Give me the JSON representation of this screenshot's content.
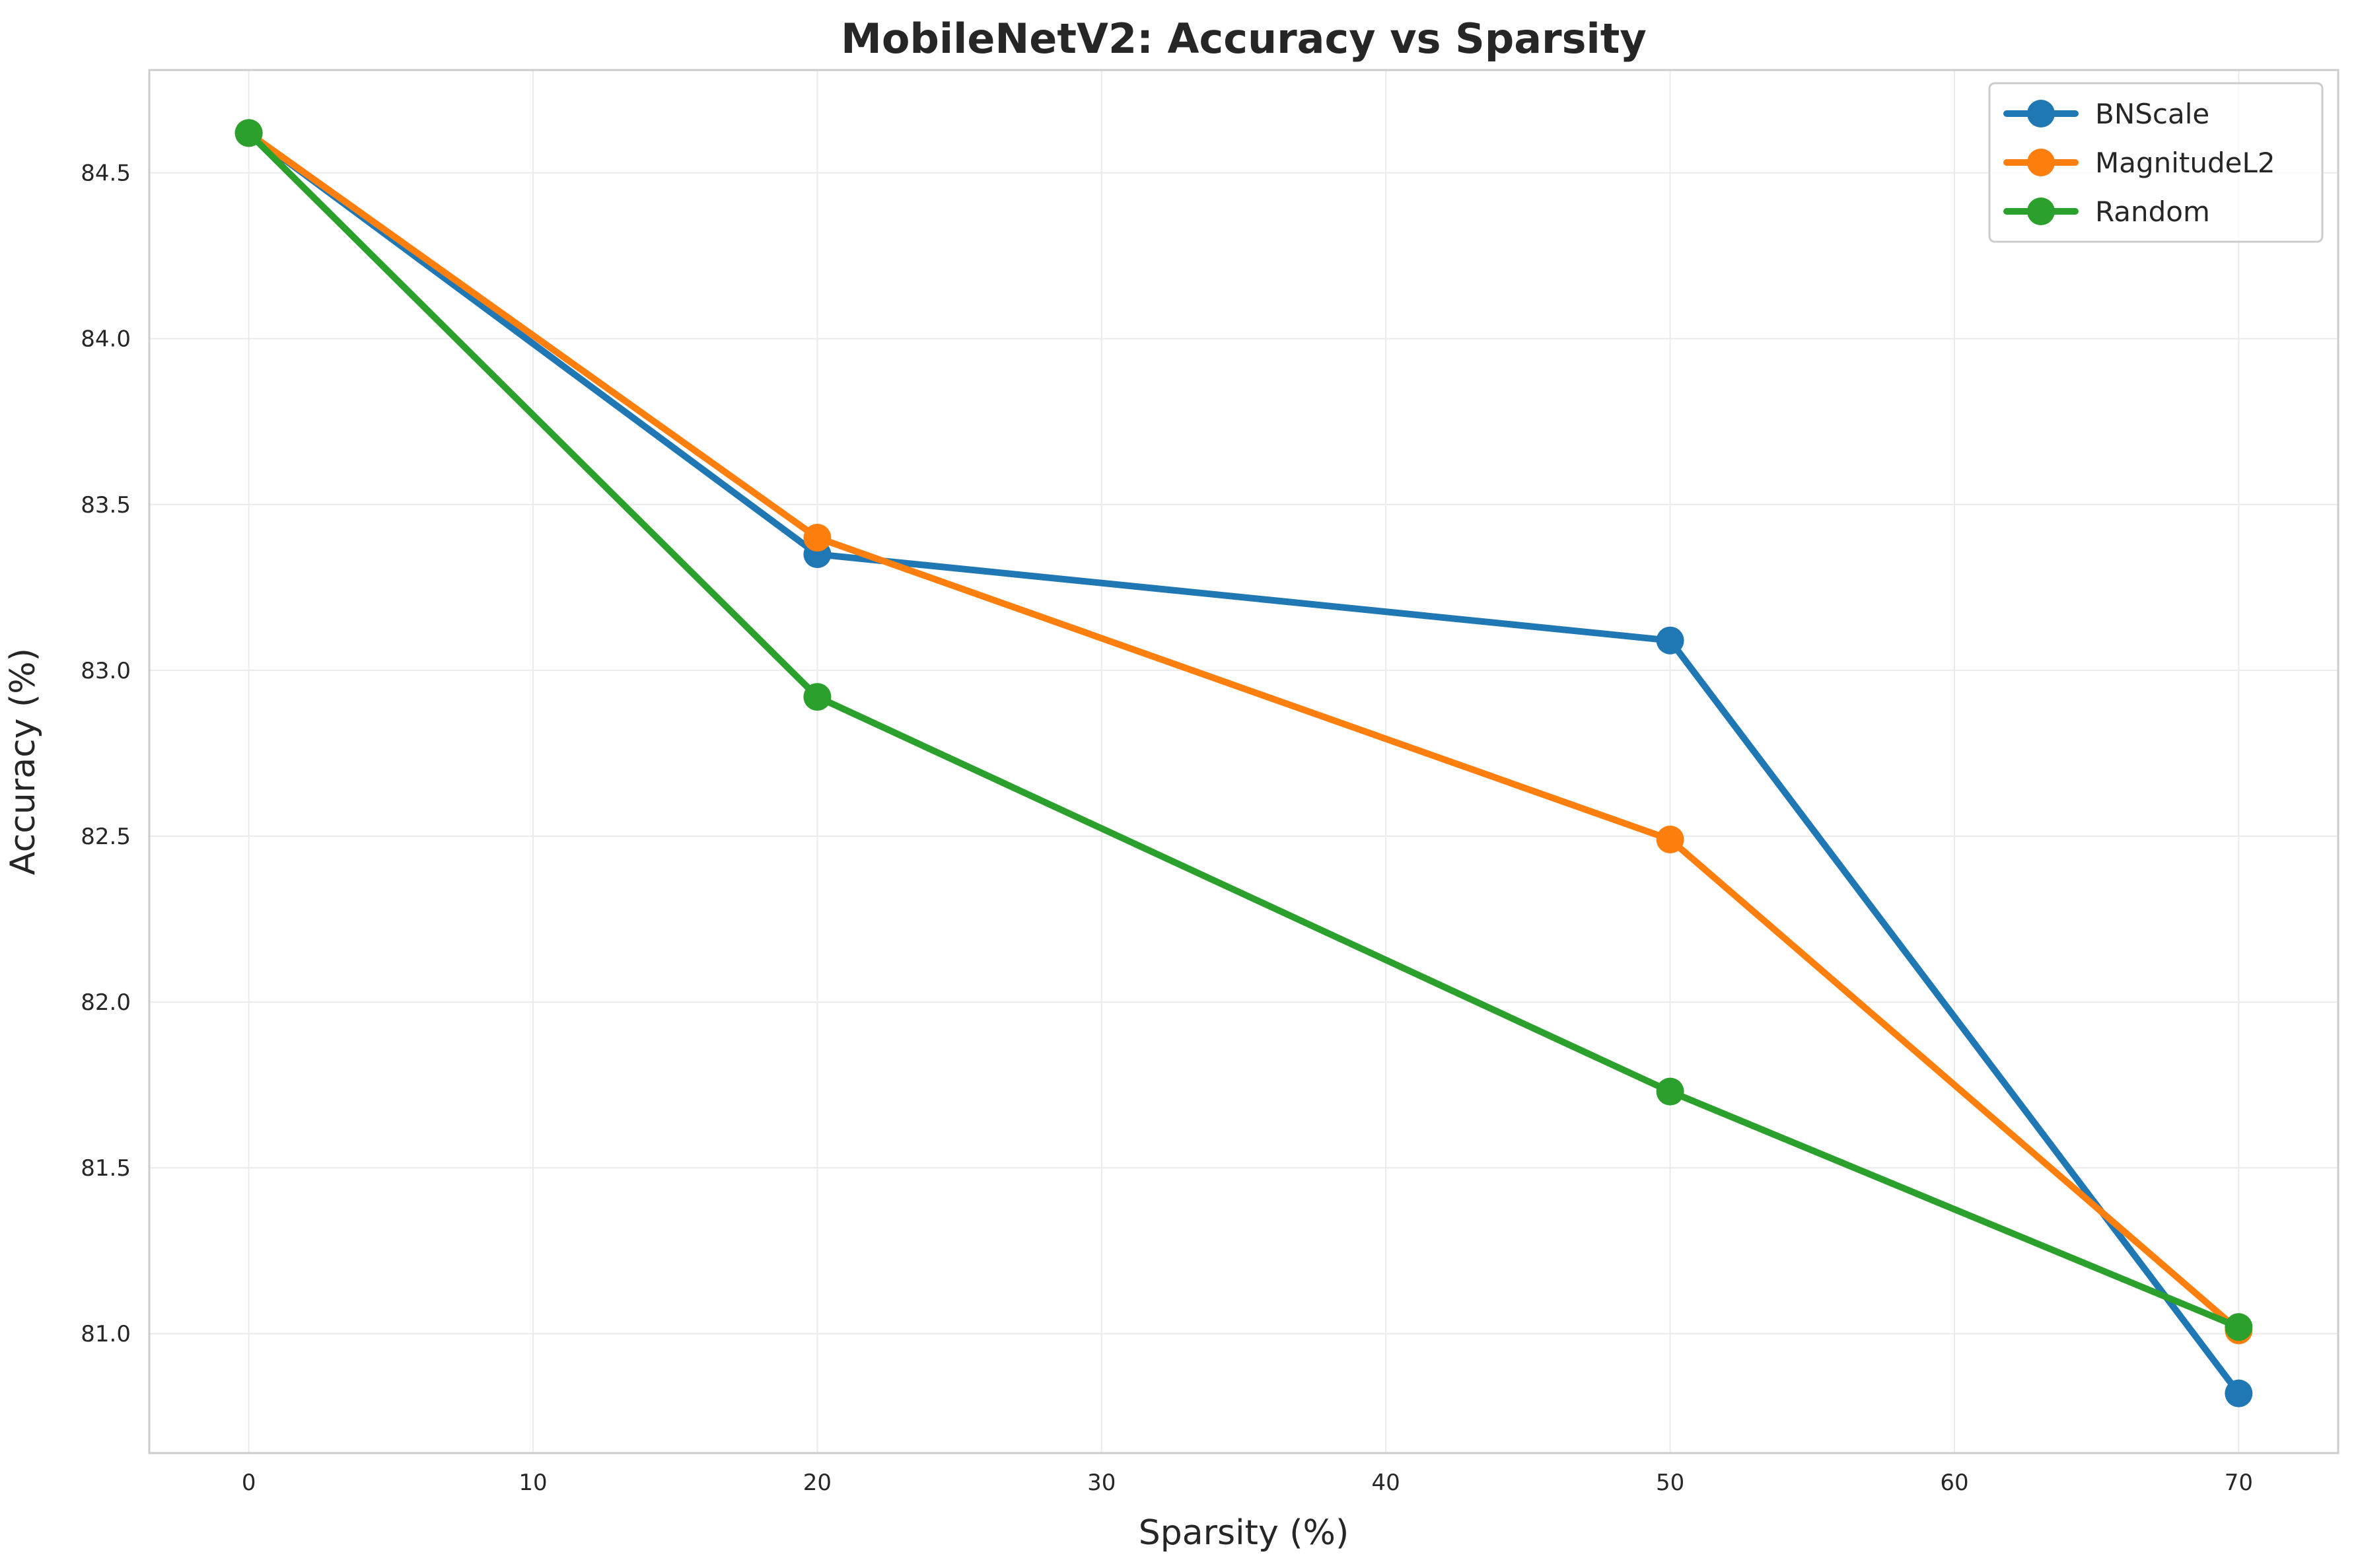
{
  "chart_data": {
    "type": "line",
    "title": "MobileNetV2: Accuracy vs Sparsity",
    "xlabel": "Sparsity (%)",
    "ylabel": "Accuracy (%)",
    "x": [
      0,
      20,
      50,
      70
    ],
    "xlim": [
      -3.5,
      73.5
    ],
    "ylim": [
      80.64,
      84.81
    ],
    "xticks": [
      0,
      10,
      20,
      30,
      40,
      50,
      60,
      70
    ],
    "yticks": [
      81.0,
      81.5,
      82.0,
      82.5,
      83.0,
      83.5,
      84.0,
      84.5
    ],
    "xtick_labels": [
      "0",
      "10",
      "20",
      "30",
      "40",
      "50",
      "60",
      "70"
    ],
    "ytick_labels": [
      "81.0",
      "81.5",
      "82.0",
      "82.5",
      "83.0",
      "83.5",
      "84.0",
      "84.5"
    ],
    "grid": true,
    "legend_position": "top-right",
    "series": [
      {
        "name": "BNScale",
        "color": "#1f77b4",
        "values": [
          84.62,
          83.35,
          83.09,
          80.82
        ]
      },
      {
        "name": "MagnitudeL2",
        "color": "#ff7f0e",
        "values": [
          84.62,
          83.4,
          82.49,
          81.01
        ]
      },
      {
        "name": "Random",
        "color": "#2ca02c",
        "values": [
          84.62,
          82.92,
          81.73,
          81.02
        ]
      }
    ]
  }
}
